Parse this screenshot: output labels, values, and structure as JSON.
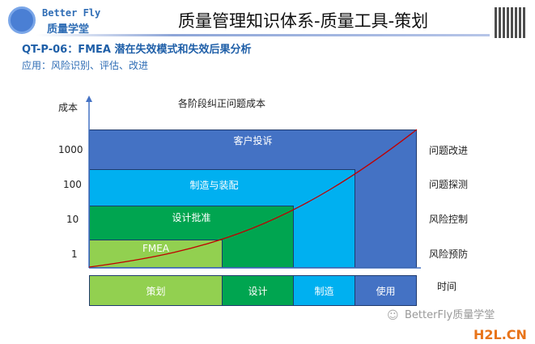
{
  "header": {
    "logo_line1": "Better Fly",
    "logo_line2": "质量学堂",
    "title": "质量管理知识体系-质量工具-策划"
  },
  "subtitle": {
    "code": "QT-P-06：FMEA 潜在失效模式和失效后果分析",
    "application": "应用：风险识别、评估、改进"
  },
  "diagram": {
    "title": "各阶段纠正问题成本",
    "y_axis_label": "成本",
    "x_axis_label": "时间",
    "y_ticks": [
      "1000",
      "100",
      "10",
      "1"
    ],
    "right_labels": [
      "问题改进",
      "问题探测",
      "风险控制",
      "风险预防"
    ],
    "blocks": [
      {
        "label": "客户投诉",
        "color": "#4472c4"
      },
      {
        "label": "制造与装配",
        "color": "#00b0f0"
      },
      {
        "label": "设计批准",
        "color": "#00a550"
      },
      {
        "label": "FMEA",
        "color": "#92d050"
      }
    ],
    "phases": [
      {
        "label": "策划",
        "color": "#92d050"
      },
      {
        "label": "设计",
        "color": "#00a550"
      },
      {
        "label": "制造",
        "color": "#00b0f0"
      },
      {
        "label": "使用",
        "color": "#4472c4"
      }
    ],
    "curve_color": "#c00000"
  },
  "watermark": {
    "text": "BetterFly质量学堂",
    "site": "H2L.CN"
  }
}
